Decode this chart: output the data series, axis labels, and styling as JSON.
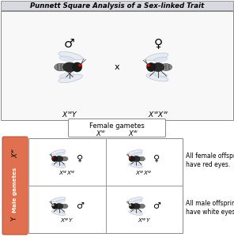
{
  "title": "Punnett Square Analysis of a Sex-linked Trait",
  "title_bg": "#c8c8d0",
  "title_fontsize": 6.2,
  "outer_bg": "#ffffff",
  "parent_panel_bg": "#f8f8f8",
  "male_gametes_bg": "#e07050",
  "male_gametes_text": "Male gametes",
  "female_gametes_text": "Female gametes",
  "male_symbol": "♂",
  "female_symbol": "♀",
  "annotation_female": "All female offspring\nhave red eyes.",
  "annotation_male": "All male offspring\nhave white eyes.",
  "annotation_fontsize": 5.5,
  "gray_bg": "#d8d8e0"
}
